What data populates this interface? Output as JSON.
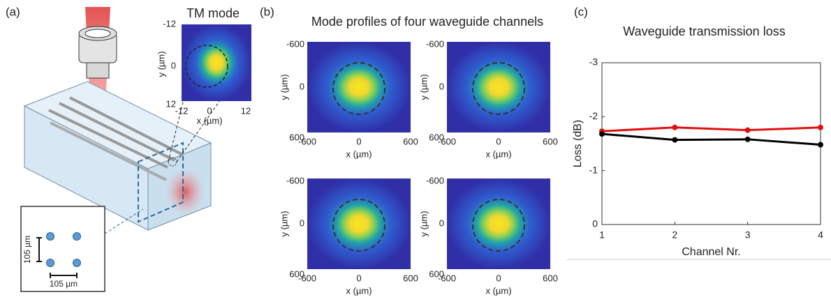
{
  "panel_labels": [
    "(a)",
    "(b)",
    "(c)"
  ],
  "panel_a": {
    "inset_title": "TM mode",
    "inset_ticks": [
      "-12",
      "0",
      "12"
    ],
    "inset_x_label": "x (µm)",
    "inset_y_label": "y (µm)",
    "spacing_label_vertical": "105 µm",
    "spacing_label_horizontal": "105 µm"
  },
  "panel_b": {
    "title": "Mode profiles of four waveguide channels",
    "ticks": [
      "-600",
      "0",
      "600"
    ],
    "x_label": "x (µm)",
    "y_label": "y (µm)"
  },
  "chart_data": {
    "type": "line",
    "title": "Waveguide transmission loss",
    "x_label": "Channel Nr.",
    "y_label": "Loss (dB)",
    "x": [
      1,
      2,
      3,
      4
    ],
    "xlim": [
      1,
      4
    ],
    "xticks": [
      1,
      2,
      3,
      4
    ],
    "ylim": [
      0,
      -3
    ],
    "yticks": [
      -3,
      -2,
      -1,
      0
    ],
    "series": [
      {
        "color": "#e01010",
        "values": [
          -1.73,
          -1.8,
          -1.75,
          -1.8
        ]
      },
      {
        "color": "#000000",
        "values": [
          -1.68,
          -1.57,
          -1.58,
          -1.48
        ]
      }
    ]
  }
}
